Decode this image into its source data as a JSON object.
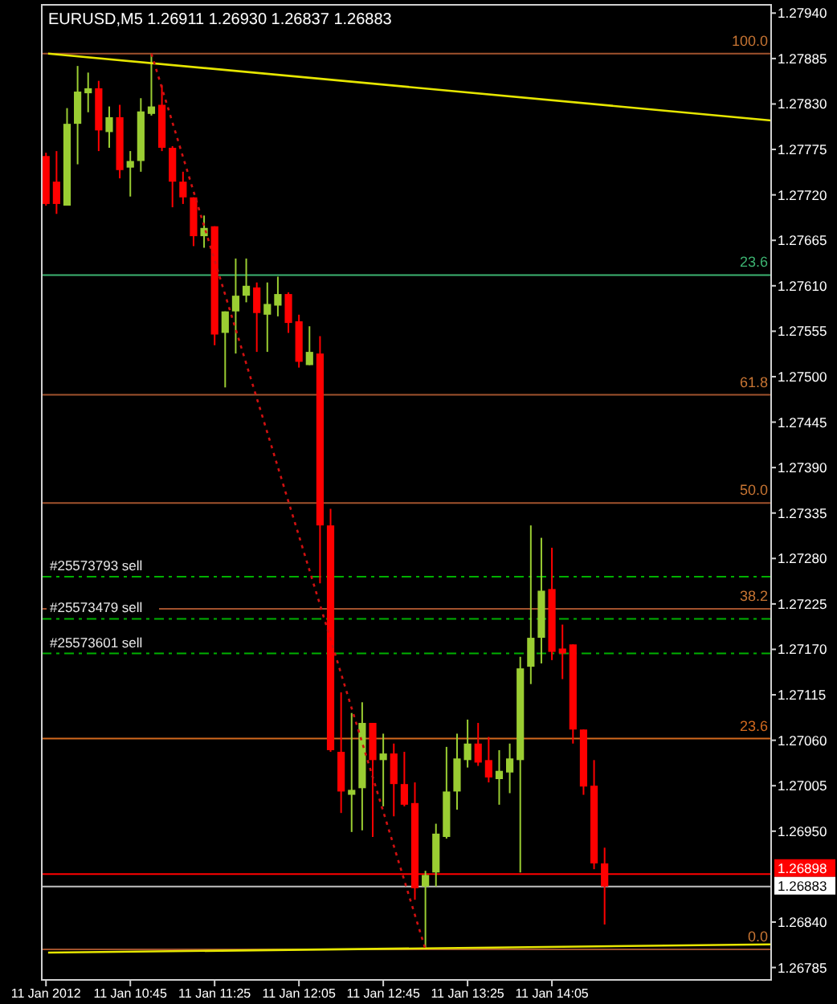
{
  "chart_data": {
    "type": "candlestick",
    "title": "EURUSD,M5  1.26911 1.26930 1.26837 1.26883",
    "x": [
      "2012-01-11T10:05",
      "2012-01-11T10:10",
      "2012-01-11T10:15",
      "2012-01-11T10:20",
      "2012-01-11T10:25",
      "2012-01-11T10:30",
      "2012-01-11T10:35",
      "2012-01-11T10:40",
      "2012-01-11T10:45",
      "2012-01-11T10:50",
      "2012-01-11T10:55",
      "2012-01-11T11:00",
      "2012-01-11T11:05",
      "2012-01-11T11:10",
      "2012-01-11T11:15",
      "2012-01-11T11:20",
      "2012-01-11T11:25",
      "2012-01-11T11:30",
      "2012-01-11T11:35",
      "2012-01-11T11:40",
      "2012-01-11T11:45",
      "2012-01-11T11:50",
      "2012-01-11T11:55",
      "2012-01-11T12:00",
      "2012-01-11T12:05",
      "2012-01-11T12:10",
      "2012-01-11T12:15",
      "2012-01-11T12:20",
      "2012-01-11T12:25",
      "2012-01-11T12:30",
      "2012-01-11T12:35",
      "2012-01-11T12:40",
      "2012-01-11T12:45",
      "2012-01-11T12:50",
      "2012-01-11T12:55",
      "2012-01-11T13:00",
      "2012-01-11T13:05",
      "2012-01-11T13:10",
      "2012-01-11T13:15",
      "2012-01-11T13:20",
      "2012-01-11T13:25",
      "2012-01-11T13:30",
      "2012-01-11T13:35",
      "2012-01-11T13:40",
      "2012-01-11T13:45",
      "2012-01-11T13:50",
      "2012-01-11T13:55",
      "2012-01-11T14:00",
      "2012-01-11T14:05",
      "2012-01-11T14:10",
      "2012-01-11T14:15",
      "2012-01-11T14:20",
      "2012-01-11T14:25",
      "2012-01-11T14:30"
    ],
    "ohlc": [
      [
        1.27767,
        1.27771,
        1.27707,
        1.27709
      ],
      [
        1.27736,
        1.27773,
        1.27697,
        1.27709
      ],
      [
        1.27707,
        1.27825,
        1.27707,
        1.27806
      ],
      [
        1.27806,
        1.27876,
        1.27757,
        1.27845
      ],
      [
        1.27843,
        1.27868,
        1.2782,
        1.27849
      ],
      [
        1.27849,
        1.27858,
        1.27773,
        1.27798
      ],
      [
        1.27796,
        1.27827,
        1.27777,
        1.27814
      ],
      [
        1.27814,
        1.27829,
        1.2774,
        1.2775
      ],
      [
        1.27753,
        1.27773,
        1.27718,
        1.27761
      ],
      [
        1.27761,
        1.27837,
        1.27748,
        1.27821
      ],
      [
        1.27818,
        1.27891,
        1.27816,
        1.27827
      ],
      [
        1.27829,
        1.27853,
        1.27773,
        1.27777
      ],
      [
        1.27777,
        1.27779,
        1.27705,
        1.27736
      ],
      [
        1.27736,
        1.27748,
        1.27709,
        1.27717
      ],
      [
        1.27717,
        1.27717,
        1.27658,
        1.2767
      ],
      [
        1.2767,
        1.27695,
        1.27656,
        1.2768
      ],
      [
        1.27682,
        1.27682,
        1.27538,
        1.27551
      ],
      [
        1.27553,
        1.27579,
        1.27487,
        1.27579
      ],
      [
        1.27579,
        1.27643,
        1.27528,
        1.27598
      ],
      [
        1.27598,
        1.27643,
        1.2759,
        1.2761
      ],
      [
        1.27608,
        1.27614,
        1.2753,
        1.27577
      ],
      [
        1.27575,
        1.27614,
        1.2753,
        1.27588
      ],
      [
        1.27586,
        1.27621,
        1.27573,
        1.276
      ],
      [
        1.276,
        1.27602,
        1.27553,
        1.27565
      ],
      [
        1.27567,
        1.27575,
        1.27511,
        1.27518
      ],
      [
        1.27514,
        1.27561,
        1.27514,
        1.2753
      ],
      [
        1.27528,
        1.27549,
        1.2725,
        1.2732
      ],
      [
        1.2732,
        1.2734,
        1.27046,
        1.27048
      ],
      [
        1.27046,
        1.27118,
        1.26972,
        1.26998
      ],
      [
        1.26994,
        1.27093,
        1.26949,
        1.27
      ],
      [
        1.27002,
        1.27106,
        1.26951,
        1.27081
      ],
      [
        1.27081,
        1.27081,
        1.26943,
        1.27036
      ],
      [
        1.27036,
        1.27068,
        1.2698,
        1.27044
      ],
      [
        1.27044,
        1.27056,
        1.26968,
        1.27007
      ],
      [
        1.27007,
        1.27046,
        1.2698,
        1.26982
      ],
      [
        1.26984,
        1.27009,
        1.26867,
        1.26881
      ],
      [
        1.26883,
        1.26902,
        1.26807,
        1.26897
      ],
      [
        1.269,
        1.26959,
        1.26883,
        1.26947
      ],
      [
        1.26943,
        1.27052,
        1.26941,
        1.26998
      ],
      [
        1.26998,
        1.27068,
        1.26976,
        1.27038
      ],
      [
        1.27036,
        1.27085,
        1.27027,
        1.27056
      ],
      [
        1.27056,
        1.27081,
        1.27029,
        1.27033
      ],
      [
        1.27036,
        1.27064,
        1.27009,
        1.27015
      ],
      [
        1.27013,
        1.27048,
        1.26982,
        1.27023
      ],
      [
        1.27021,
        1.27056,
        1.26996,
        1.27038
      ],
      [
        1.27036,
        1.27161,
        1.269,
        1.27147
      ],
      [
        1.27149,
        1.2732,
        1.27128,
        1.27184
      ],
      [
        1.27184,
        1.27305,
        1.27153,
        1.27241
      ],
      [
        1.27243,
        1.27293,
        1.27157,
        1.27167
      ],
      [
        1.27171,
        1.272,
        1.27134,
        1.27165
      ],
      [
        1.27176,
        1.27176,
        1.27056,
        1.27073
      ],
      [
        1.27073,
        1.27073,
        1.26994,
        1.27004
      ],
      [
        1.27005,
        1.27036,
        1.26904,
        1.26911
      ],
      [
        1.26911,
        1.2693,
        1.26837,
        1.26883
      ]
    ],
    "colors": [
      "#ff0000",
      "#ff0000",
      "#9acd32",
      "#9acd32",
      "#9acd32",
      "#ff0000",
      "#9acd32",
      "#ff0000",
      "#9acd32",
      "#9acd32",
      "#9acd32",
      "#ff0000",
      "#ff0000",
      "#ff0000",
      "#ff0000",
      "#9acd32",
      "#ff0000",
      "#9acd32",
      "#9acd32",
      "#9acd32",
      "#ff0000",
      "#9acd32",
      "#9acd32",
      "#ff0000",
      "#ff0000",
      "#9acd32",
      "#ff0000",
      "#ff0000",
      "#ff0000",
      "#9acd32",
      "#9acd32",
      "#ff0000",
      "#9acd32",
      "#ff0000",
      "#ff0000",
      "#ff0000",
      "#9acd32",
      "#9acd32",
      "#9acd32",
      "#9acd32",
      "#9acd32",
      "#ff0000",
      "#ff0000",
      "#9acd32",
      "#9acd32",
      "#9acd32",
      "#9acd32",
      "#9acd32",
      "#ff0000",
      "#ff0000",
      "#ff0000",
      "#ff0000",
      "#ff0000",
      "#ff0000"
    ],
    "series": [
      {
        "type": "line",
        "color": "#e6e600",
        "line_style": "solid",
        "x": [
          "2012-01-11T10:06",
          "2012-01-11T15:49"
        ],
        "values": [
          1.27891,
          1.2781
        ]
      },
      {
        "type": "line",
        "color": "#e6e600",
        "line_style": "solid",
        "x": [
          "2012-01-11T10:06",
          "2012-01-11T15:49"
        ],
        "values": [
          1.26803,
          1.26813
        ]
      },
      {
        "type": "line",
        "color": "#d01010",
        "line_style": "dotted",
        "x": [
          "2012-01-11T10:55",
          "2012-01-11T13:05"
        ],
        "values": [
          1.27891,
          1.26807
        ]
      }
    ],
    "xlim": [
      "2012-01-11T10:03",
      "2012-01-11T15:49"
    ],
    "xticks": [
      {
        "value": "2012-01-11T10:05",
        "label": "11 Jan 2012"
      },
      {
        "value": "2012-01-11T10:45",
        "label": "11 Jan 10:45"
      },
      {
        "value": "2012-01-11T11:25",
        "label": "11 Jan 11:25"
      },
      {
        "value": "2012-01-11T12:05",
        "label": "11 Jan 12:05"
      },
      {
        "value": "2012-01-11T12:45",
        "label": "11 Jan 12:45"
      },
      {
        "value": "2012-01-11T13:25",
        "label": "11 Jan 13:25"
      },
      {
        "value": "2012-01-11T14:05",
        "label": "11 Jan 14:05"
      }
    ],
    "ylim": [
      1.2677,
      1.2795
    ],
    "yticks": [
      {
        "value": 1.2794,
        "label": "1.27940"
      },
      {
        "value": 1.27885,
        "label": "1.27885"
      },
      {
        "value": 1.2783,
        "label": "1.27830"
      },
      {
        "value": 1.27775,
        "label": "1.27775"
      },
      {
        "value": 1.2772,
        "label": "1.27720"
      },
      {
        "value": 1.27665,
        "label": "1.27665"
      },
      {
        "value": 1.2761,
        "label": "1.27610"
      },
      {
        "value": 1.27555,
        "label": "1.27555"
      },
      {
        "value": 1.275,
        "label": "1.27500"
      },
      {
        "value": 1.27445,
        "label": "1.27445"
      },
      {
        "value": 1.2739,
        "label": "1.27390"
      },
      {
        "value": 1.27335,
        "label": "1.27335"
      },
      {
        "value": 1.2728,
        "label": "1.27280"
      },
      {
        "value": 1.27225,
        "label": "1.27225"
      },
      {
        "value": 1.2717,
        "label": "1.27170"
      },
      {
        "value": 1.27115,
        "label": "1.27115"
      },
      {
        "value": 1.2706,
        "label": "1.27060"
      },
      {
        "value": 1.27005,
        "label": "1.27005"
      },
      {
        "value": 1.2695,
        "label": "1.26950"
      },
      {
        "value": 1.2684,
        "label": "1.26840"
      },
      {
        "value": 1.26785,
        "label": "1.26785"
      }
    ],
    "ref_lines": [
      {
        "axis": "y",
        "value": 1.27891,
        "color": "#a0522d",
        "line_style": "solid"
      },
      {
        "axis": "y",
        "value": 1.27623,
        "color": "#3cb371",
        "line_style": "solid"
      },
      {
        "axis": "y",
        "value": 1.27478,
        "color": "#a0522d",
        "line_style": "solid"
      },
      {
        "axis": "y",
        "value": 1.27347,
        "color": "#a0522d",
        "line_style": "solid"
      },
      {
        "axis": "y",
        "value": 1.27219,
        "color": "#a0522d",
        "line_style": "solid"
      },
      {
        "axis": "y",
        "value": 1.27062,
        "color": "#d2691e",
        "line_style": "solid"
      },
      {
        "axis": "y",
        "value": 1.26807,
        "color": "#a0522d",
        "line_style": "solid"
      },
      {
        "axis": "y",
        "value": 1.27258,
        "label": "#25573793 sell",
        "color": "#00b000",
        "line_style": "dashed"
      },
      {
        "axis": "y",
        "value": 1.27207,
        "label": "#25573479 sell",
        "color": "#00b000",
        "line_style": "dashed"
      },
      {
        "axis": "y",
        "value": 1.27165,
        "label": "#25573601 sell",
        "color": "#00b000",
        "line_style": "dashed"
      },
      {
        "axis": "y",
        "value": 1.26898,
        "label": "1.26898",
        "color": "#ff0000",
        "line_style": "solid"
      },
      {
        "axis": "y",
        "value": 1.26883,
        "label": "1.26883",
        "color": "#c0c0c0",
        "line_style": "solid"
      }
    ],
    "annotations": [
      "100.0",
      "23.6",
      "61.8",
      "50.0",
      "38.2",
      "23.6",
      "0.0"
    ]
  }
}
